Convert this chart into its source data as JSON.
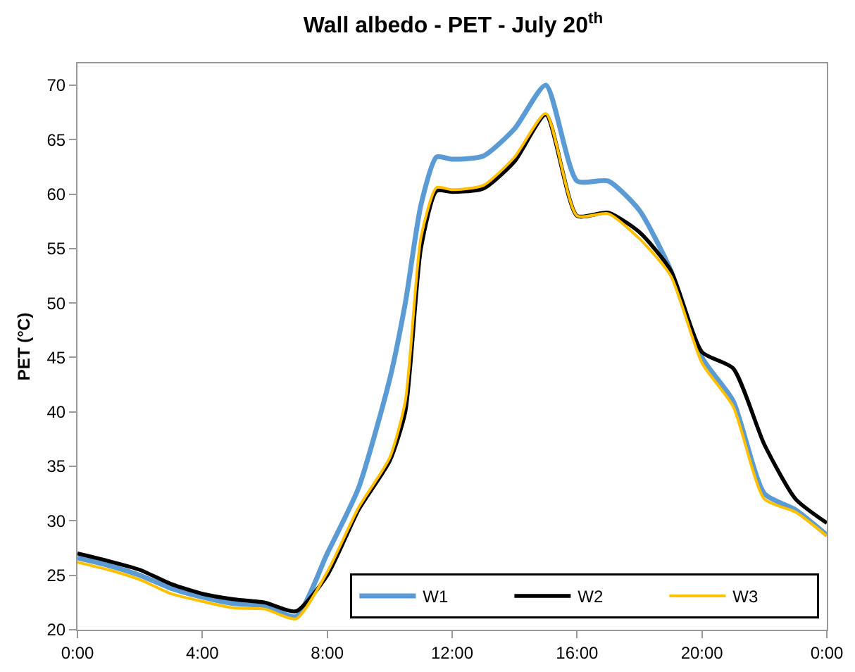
{
  "chart_data": {
    "type": "line",
    "title": "Wall albedo - PET - July 20$^{th}$",
    "ylabel": "PET (°C)",
    "x": [
      0,
      1,
      2,
      3,
      4,
      5,
      6,
      7,
      8,
      9,
      10,
      10.5,
      11,
      11.5,
      12,
      13,
      14,
      15,
      16,
      17,
      18,
      19,
      20,
      21,
      22,
      23,
      24
    ],
    "series": [
      {
        "name": "W1",
        "color": "#5b9bd5",
        "values": [
          26.6,
          25.9,
          25,
          23.8,
          23,
          22.4,
          22.2,
          21.2,
          27,
          33,
          43,
          50,
          59,
          63.4,
          63.2,
          63.5,
          66,
          70,
          61.2,
          61.2,
          58.5,
          53,
          45,
          41,
          32.5,
          31,
          28.7
        ]
      },
      {
        "name": "W2",
        "color": "#000000",
        "values": [
          27,
          26.3,
          25.5,
          24.2,
          23.3,
          22.8,
          22.5,
          21.7,
          25,
          31,
          35.5,
          40,
          55,
          60.3,
          60.2,
          60.5,
          63,
          67.3,
          58,
          58.3,
          56.5,
          53,
          45.5,
          44,
          37,
          32,
          29.8
        ]
      },
      {
        "name": "W3",
        "color": "#ffc000",
        "values": [
          26.2,
          25.5,
          24.6,
          23.3,
          22.6,
          22,
          21.9,
          21,
          25.3,
          31.2,
          35.8,
          41,
          56,
          60.6,
          60.4,
          60.8,
          63.4,
          67.4,
          58,
          58.2,
          55.9,
          52.5,
          44.5,
          40.5,
          32,
          30.8,
          28.6
        ]
      }
    ],
    "xlim": [
      0,
      24
    ],
    "xticks": [
      {
        "value": 0,
        "label": "0:00"
      },
      {
        "value": 4,
        "label": "4:00"
      },
      {
        "value": 8,
        "label": "8:00"
      },
      {
        "value": 12,
        "label": "12:00"
      },
      {
        "value": 16,
        "label": "16:00"
      },
      {
        "value": 20,
        "label": "20:00"
      },
      {
        "value": 24,
        "label": "0:00"
      }
    ],
    "ylim": [
      20,
      72
    ],
    "yticks": [
      20,
      25,
      30,
      35,
      40,
      45,
      50,
      55,
      60,
      65,
      70
    ],
    "grid": false,
    "legend": "bottom right",
    "marker": "none",
    "line_style": "solid"
  }
}
